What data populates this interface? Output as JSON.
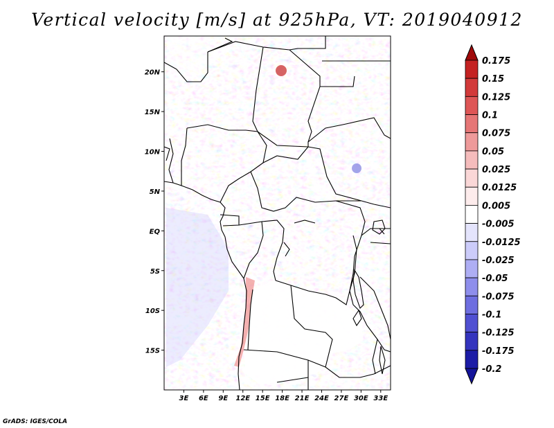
{
  "title": "Vertical velocity [m/s] at 925hPa, VT: 2019040912",
  "credit": "GrADS: IGES/COLA",
  "map": {
    "lon_range": [
      0,
      34.5
    ],
    "lat_range": [
      -20,
      24.5
    ],
    "x_ticks": [
      {
        "lon": 3,
        "label": "3E"
      },
      {
        "lon": 6,
        "label": "6E"
      },
      {
        "lon": 9,
        "label": "9E"
      },
      {
        "lon": 12,
        "label": "12E"
      },
      {
        "lon": 15,
        "label": "15E"
      },
      {
        "lon": 18,
        "label": "18E"
      },
      {
        "lon": 21,
        "label": "21E"
      },
      {
        "lon": 24,
        "label": "24E"
      },
      {
        "lon": 27,
        "label": "27E"
      },
      {
        "lon": 30,
        "label": "30E"
      },
      {
        "lon": 33,
        "label": "33E"
      }
    ],
    "y_ticks": [
      {
        "lat": 20,
        "label": "20N"
      },
      {
        "lat": 15,
        "label": "15N"
      },
      {
        "lat": 10,
        "label": "10N"
      },
      {
        "lat": 5,
        "label": "5N"
      },
      {
        "lat": 0,
        "label": "EQ"
      },
      {
        "lat": -5,
        "label": "5S"
      },
      {
        "lat": -10,
        "label": "10S"
      },
      {
        "lat": -15,
        "label": "15S"
      }
    ]
  },
  "colorbar": {
    "levels": [
      {
        "label": "0.175",
        "color": "#b01010"
      },
      {
        "label": "0.15",
        "color": "#c42222"
      },
      {
        "label": "0.125",
        "color": "#d23a3a"
      },
      {
        "label": "0.1",
        "color": "#de5656"
      },
      {
        "label": "0.075",
        "color": "#e67676"
      },
      {
        "label": "0.05",
        "color": "#ee9a9a"
      },
      {
        "label": "0.025",
        "color": "#f5bcbc"
      },
      {
        "label": "0.0125",
        "color": "#fad7d7"
      },
      {
        "label": "0.005",
        "color": "#fdecec"
      },
      {
        "label": "-0.005",
        "color": "#ffffff"
      },
      {
        "label": "-0.0125",
        "color": "#e4e4fc"
      },
      {
        "label": "-0.025",
        "color": "#ccccfa"
      },
      {
        "label": "-0.05",
        "color": "#aeaef4"
      },
      {
        "label": "-0.075",
        "color": "#8e8eec"
      },
      {
        "label": "-0.1",
        "color": "#6e6ee0"
      },
      {
        "label": "-0.125",
        "color": "#5050d2"
      },
      {
        "label": "-0.175",
        "color": "#3434be"
      },
      {
        "label": "-0.2",
        "color": "#1c1ca6"
      }
    ],
    "top_arrow_color": "#a00a0a",
    "bottom_arrow_color": "#14149a"
  }
}
